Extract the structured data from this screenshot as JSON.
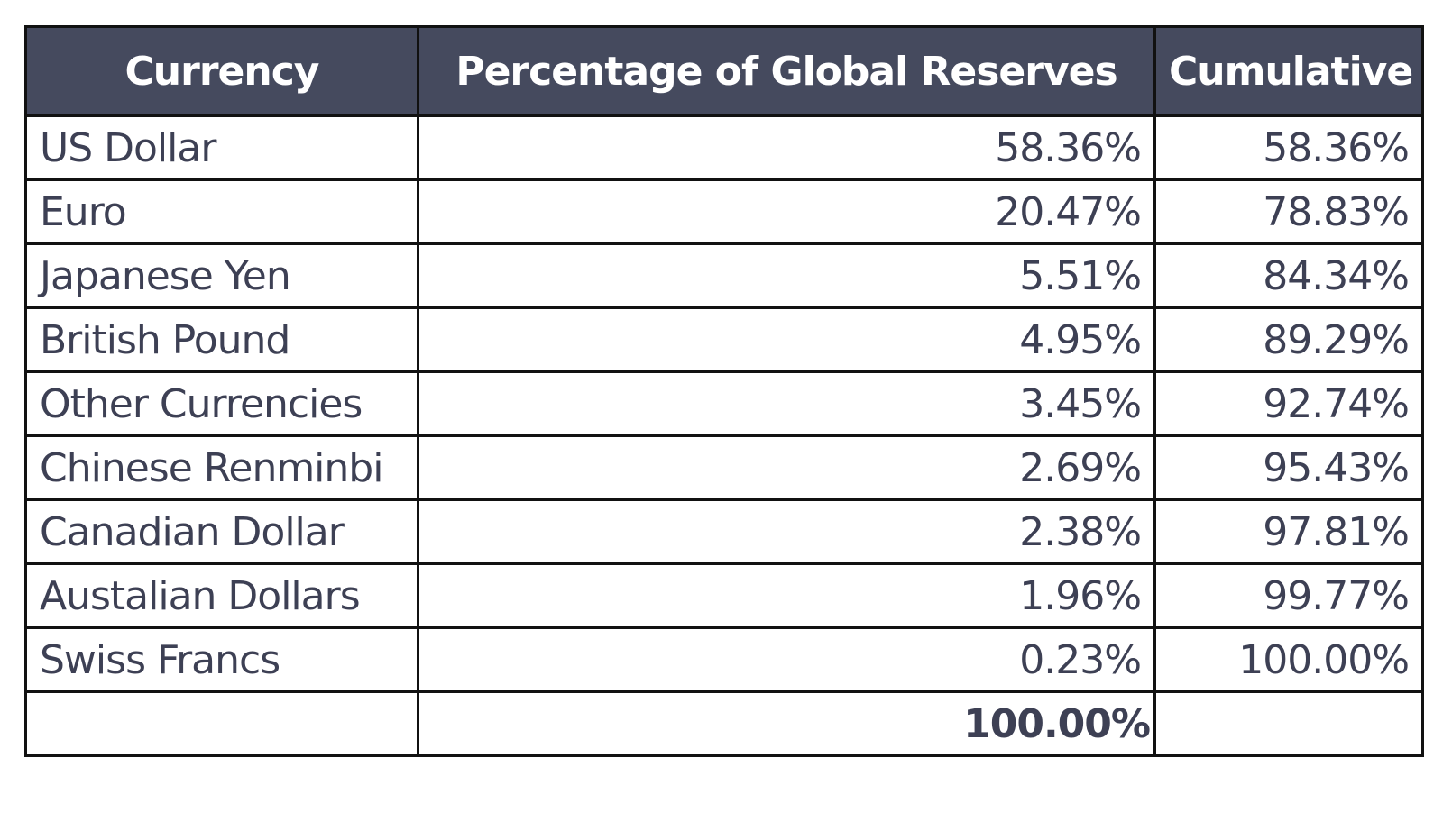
{
  "table": {
    "header": [
      "Currency",
      "Percentage of Global Reserves",
      "Cumulative"
    ],
    "rows": [
      [
        "US Dollar",
        "58.36%",
        "58.36%"
      ],
      [
        "Euro",
        "20.47%",
        "78.83%"
      ],
      [
        "Japanese Yen",
        "5.51%",
        "84.34%"
      ],
      [
        "British Pound",
        "4.95%",
        "89.29%"
      ],
      [
        "Other Currencies",
        "3.45%",
        "92.74%"
      ],
      [
        "Chinese Renminbi",
        "2.69%",
        "95.43%"
      ],
      [
        "Canadian Dollar",
        "2.38%",
        "97.81%"
      ],
      [
        "Austalian Dollars",
        "1.96%",
        "99.77%"
      ],
      [
        "Swiss Francs",
        "0.23%",
        "100.00%"
      ]
    ],
    "total": "100.00%"
  }
}
